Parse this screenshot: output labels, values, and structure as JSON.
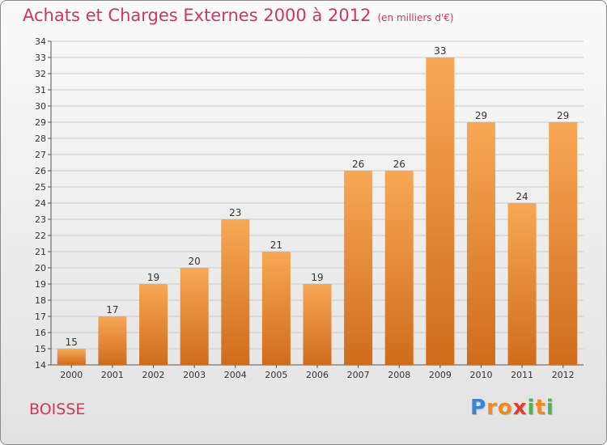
{
  "chart_data": {
    "type": "bar",
    "title": "Achats et Charges Externes 2000 à 2012",
    "unit": "(en milliers d'€)",
    "categories": [
      "2000",
      "2001",
      "2002",
      "2003",
      "2004",
      "2005",
      "2006",
      "2007",
      "2008",
      "2009",
      "2010",
      "2011",
      "2012"
    ],
    "values": [
      15,
      17,
      19,
      20,
      23,
      21,
      19,
      26,
      26,
      33,
      29,
      24,
      29
    ],
    "ylim": [
      14,
      34
    ],
    "ytick_step": 1,
    "grid": true,
    "xlabel": "",
    "ylabel": "",
    "colors": {
      "bar_top": "#f8a855",
      "bar_bottom": "#cf6c1c",
      "grid": "#c8c8c8",
      "title": "#d1365f"
    }
  },
  "footer": {
    "commune": "BOISSE",
    "logo": "Proxiti"
  }
}
